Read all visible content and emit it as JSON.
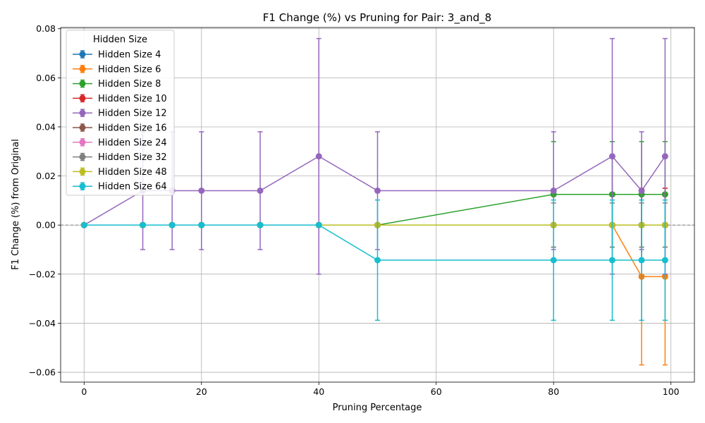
{
  "chart_data": {
    "type": "line",
    "title": "F1 Change (%) vs Pruning for Pair: 3_and_8",
    "xlabel": "Pruning Percentage",
    "ylabel": "F1 Change (%) from Original",
    "xlim": [
      -4,
      104
    ],
    "ylim": [
      -0.064,
      0.0805
    ],
    "xticks": [
      0,
      20,
      40,
      60,
      80,
      100
    ],
    "yticks": [
      -0.06,
      -0.04,
      -0.02,
      0.0,
      0.02,
      0.04,
      0.06,
      0.08
    ],
    "ytick_labels": [
      "−0.06",
      "−0.04",
      "−0.02",
      "0.00",
      "0.02",
      "0.04",
      "0.06",
      "0.08"
    ],
    "grid": true,
    "reference_line_y": 0,
    "legend": {
      "title": "Hidden Size",
      "placement": "upper left"
    },
    "x": [
      0,
      10,
      15,
      20,
      30,
      40,
      50,
      80,
      90,
      95,
      99
    ],
    "series": [
      {
        "name": "Hidden Size 4",
        "color": "#1f77b4",
        "values": [
          0,
          0,
          0,
          0,
          0,
          0,
          0,
          0,
          0,
          0,
          0
        ],
        "errors": [
          0,
          0,
          0,
          0,
          0,
          0,
          0,
          0,
          0,
          0,
          0
        ]
      },
      {
        "name": "Hidden Size 6",
        "color": "#ff7f0e",
        "values": [
          0,
          0,
          0,
          0,
          0,
          0,
          0,
          0,
          0,
          -0.021,
          -0.021
        ],
        "errors": [
          0,
          0,
          0,
          0,
          0,
          0,
          0,
          0,
          0,
          0.036,
          0.036
        ]
      },
      {
        "name": "Hidden Size 8",
        "color": "#2ca02c",
        "values": [
          0,
          0,
          0,
          0,
          0,
          0,
          0,
          0.0125,
          0.0125,
          0.0125,
          0.0125
        ],
        "errors": [
          0,
          0,
          0,
          0,
          0,
          0,
          0,
          0.0215,
          0.0215,
          0.0215,
          0.0215
        ]
      },
      {
        "name": "Hidden Size 10",
        "color": "#d62728",
        "values": [
          0,
          0,
          0,
          0,
          0,
          0,
          0,
          0,
          0,
          0,
          0
        ],
        "errors": [
          0,
          0,
          0,
          0,
          0,
          0,
          0,
          0,
          0,
          0.015,
          0.015
        ]
      },
      {
        "name": "Hidden Size 12",
        "color": "#9467bd",
        "values": [
          0,
          0.014,
          0.014,
          0.014,
          0.014,
          0.028,
          0.014,
          0.014,
          0.028,
          0.014,
          0.028
        ],
        "errors": [
          0,
          0.024,
          0.024,
          0.024,
          0.024,
          0.048,
          0.024,
          0.024,
          0.048,
          0.024,
          0.048
        ]
      },
      {
        "name": "Hidden Size 16",
        "color": "#8c564b",
        "values": [
          0,
          0,
          0,
          0,
          0,
          0,
          0,
          0,
          0,
          0,
          0
        ],
        "errors": [
          0,
          0,
          0,
          0,
          0,
          0,
          0,
          0,
          0,
          0,
          0
        ]
      },
      {
        "name": "Hidden Size 24",
        "color": "#e377c2",
        "values": [
          0,
          0,
          0,
          0,
          0,
          0,
          0,
          0,
          0,
          0,
          0
        ],
        "errors": [
          0,
          0,
          0,
          0,
          0,
          0,
          0,
          0,
          0,
          0,
          0
        ]
      },
      {
        "name": "Hidden Size 32",
        "color": "#7f7f7f",
        "values": [
          0,
          0,
          0,
          0,
          0,
          0,
          0,
          0,
          0,
          0,
          0
        ],
        "errors": [
          0,
          0,
          0,
          0,
          0,
          0,
          0,
          0.009,
          0.009,
          0.009,
          0.009
        ]
      },
      {
        "name": "Hidden Size 48",
        "color": "#bcbd22",
        "values": [
          0,
          0,
          0,
          0,
          0,
          0,
          0,
          0,
          0,
          0,
          0
        ],
        "errors": [
          0,
          0,
          0,
          0,
          0,
          0,
          0,
          0,
          0,
          0,
          0
        ]
      },
      {
        "name": "Hidden Size 64",
        "color": "#17becf",
        "values": [
          0,
          0,
          0,
          0,
          0,
          0,
          -0.0143,
          -0.0143,
          -0.0143,
          -0.0143,
          -0.0143
        ],
        "errors": [
          0,
          0,
          0,
          0,
          0,
          0,
          0.0245,
          0.0245,
          0.0245,
          0.0245,
          0.0245
        ]
      }
    ]
  }
}
